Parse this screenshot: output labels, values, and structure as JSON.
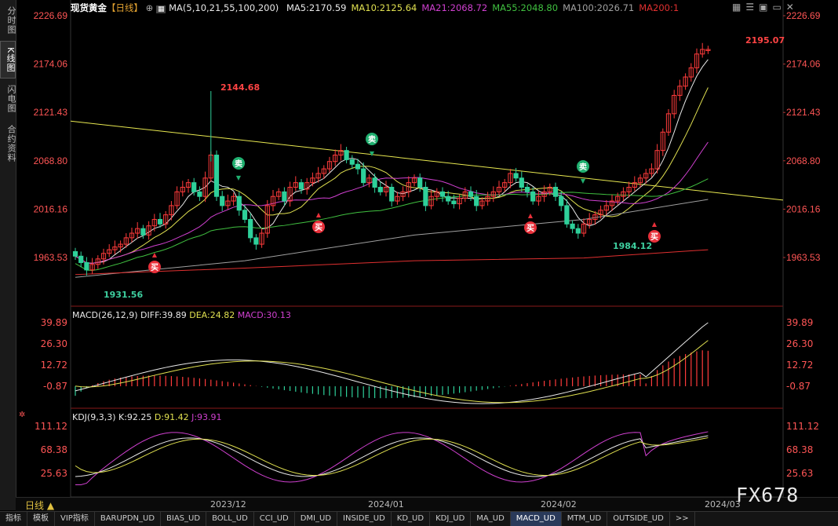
{
  "sidebar": {
    "items": [
      "分时图",
      "K线图",
      "闪电图",
      "合约资料"
    ],
    "active": 1
  },
  "header": {
    "instrument": "现货黄金",
    "period_tag": "【日线】",
    "ma_label": "MA(5,10,21,55,100,200)",
    "ma_values": [
      {
        "text": "MA5:2170.59",
        "color": "#e8e8e8"
      },
      {
        "text": "MA10:2125.64",
        "color": "#e0e050"
      },
      {
        "text": "MA21:2068.72",
        "color": "#d040d0"
      },
      {
        "text": "MA55:2048.80",
        "color": "#40c040"
      },
      {
        "text": "MA100:2026.71",
        "color": "#a0a0a0"
      },
      {
        "text": "MA200:1",
        "color": "#e03030"
      }
    ]
  },
  "price_axis": [
    "2226.69",
    "2174.06",
    "2121.43",
    "2068.80",
    "2016.16",
    "1963.53"
  ],
  "annotations": {
    "high_1": "2144.68",
    "high_2": "2195.07",
    "low_1": "1931.56",
    "low_2": "1984.12"
  },
  "signals": {
    "buy": "买",
    "sell": "卖"
  },
  "macd": {
    "label": "MACD(26,12,9)",
    "diff": "DIFF:39.89",
    "dea": "DEA:24.82",
    "macd": "MACD:30.13",
    "axis": [
      "39.89",
      "26.30",
      "12.72",
      "-0.87"
    ]
  },
  "kdj": {
    "label": "KDJ(9,3,3)",
    "k": "K:92.25",
    "d": "D:91.42",
    "j": "J:93.91",
    "axis": [
      "111.12",
      "68.38",
      "25.63"
    ]
  },
  "date_axis": [
    "2023/12",
    "2024/01",
    "2024/02",
    "2024/03"
  ],
  "period_button": "日线 ▲",
  "tabs": [
    "指标",
    "模板",
    "VIP指标",
    "BARUPDN_UD",
    "BIAS_UD",
    "BOLL_UD",
    "CCI_UD",
    "DMI_UD",
    "INSIDE_UD",
    "KD_UD",
    "KDJ_UD",
    "MA_UD",
    "MACD_UD",
    "MTM_UD",
    "OUTSIDE_UD",
    ">>"
  ],
  "active_tab": "MACD_UD",
  "watermark": "FX678",
  "colors": {
    "up": "#ff3b3b",
    "down": "#2ed09a",
    "trend": "#e8e850",
    "price_axis": "#ff5555"
  }
}
